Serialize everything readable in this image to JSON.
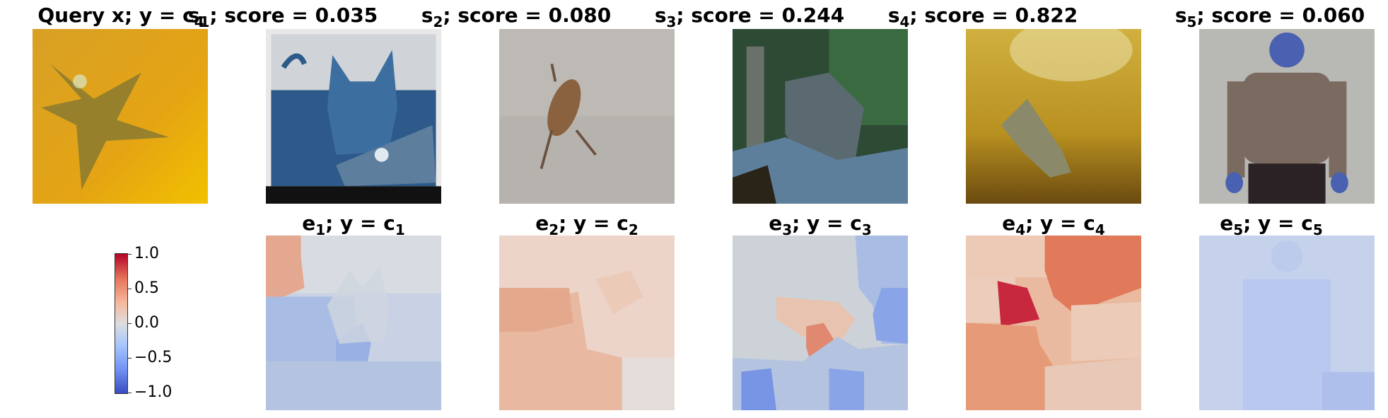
{
  "top_row": [
    {
      "label": "Query x; y = c",
      "sub": "4"
    },
    {
      "label": "s",
      "sub": "1",
      "rest": "; score = 0.035"
    },
    {
      "label": "s",
      "sub": "2",
      "rest": "; score = 0.080"
    },
    {
      "label": "s",
      "sub": "3",
      "rest": "; score = 0.244"
    },
    {
      "label": "s",
      "sub": "4",
      "rest": "; score = 0.822"
    },
    {
      "label": "s",
      "sub": "5",
      "rest": "; score = 0.060"
    }
  ],
  "bottom_row": [
    {
      "label": "e",
      "sub": "1",
      "mid": "; y = c",
      "sub2": "1"
    },
    {
      "label": "e",
      "sub": "2",
      "mid": "; y = c",
      "sub2": "2"
    },
    {
      "label": "e",
      "sub": "3",
      "mid": "; y = c",
      "sub2": "3"
    },
    {
      "label": "e",
      "sub": "4",
      "mid": "; y = c",
      "sub2": "4"
    },
    {
      "label": "e",
      "sub": "5",
      "mid": "; y = c",
      "sub2": "5"
    }
  ],
  "colorbar": {
    "ticks": [
      "1.0",
      "0.5",
      "0.0",
      "−0.5",
      "−1.0"
    ],
    "colormap": "coolwarm",
    "colors": {
      "high": "#b40426",
      "mid": "#dddddd",
      "low": "#3b4cc0"
    }
  }
}
